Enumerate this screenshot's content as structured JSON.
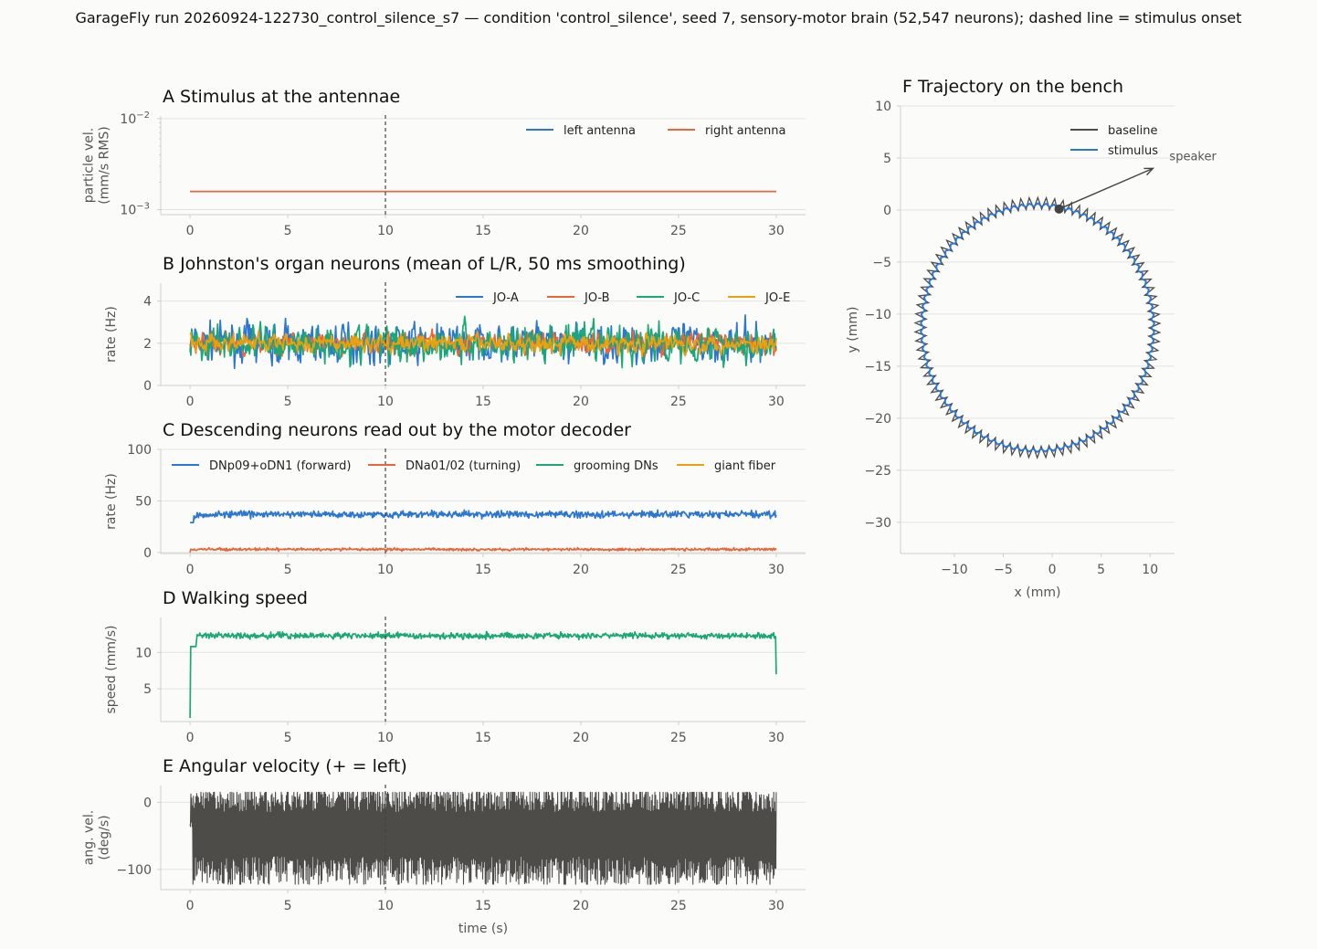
{
  "suptitle": "GarageFly run 20260924-122730_control_silence_s7 — condition 'control_silence', seed 7, sensory-motor brain (52,547 neurons); dashed line = stimulus onset",
  "colors": {
    "blue": "#2a76d2",
    "orange": "#e8663a",
    "green": "#1aa878",
    "gold": "#eba10d",
    "dark": "#4d4c49",
    "grid": "#e3e3e0",
    "axis": "#cfcfcc",
    "text": "#555555"
  },
  "chart_data": [
    {
      "id": "A",
      "type": "line",
      "title": "A  Stimulus at the antennae",
      "xlabel": "",
      "ylabel": [
        "particle vel.",
        "(mm/s RMS)"
      ],
      "yscale": "log",
      "xlim": [
        -1.5,
        31.5
      ],
      "ylim": [
        0.00088,
        0.0107
      ],
      "xticks": [
        0,
        5,
        10,
        15,
        20,
        25,
        30
      ],
      "yticks": [
        {
          "v": 0.001,
          "base": "10",
          "exp": "−3"
        },
        {
          "v": 0.01,
          "base": "10",
          "exp": "−2"
        }
      ],
      "stimulus_onset": 10,
      "legend": "top-right",
      "series": [
        {
          "name": "left antenna",
          "color": "#2a76d2",
          "x": [
            0,
            30
          ],
          "y": [
            0.00158,
            0.00158
          ]
        },
        {
          "name": "right antenna",
          "color": "#e8663a",
          "x": [
            0,
            30
          ],
          "y": [
            0.00158,
            0.00158
          ]
        }
      ]
    },
    {
      "id": "B",
      "type": "line",
      "title": "B  Johnston's organ neurons (mean of L/R, 50 ms smoothing)",
      "xlabel": "",
      "ylabel": [
        "rate (Hz)"
      ],
      "xlim": [
        -1.5,
        31.5
      ],
      "ylim": [
        0,
        4.85
      ],
      "xticks": [
        0,
        5,
        10,
        15,
        20,
        25,
        30
      ],
      "yticks": [
        0,
        2,
        4
      ],
      "stimulus_onset": 10,
      "legend": "top-right",
      "series": [
        {
          "name": "JO-A",
          "color": "#2a76d2",
          "mean": 2.0,
          "noise": 0.9,
          "range": [
            0.2,
            4.6
          ]
        },
        {
          "name": "JO-B",
          "color": "#e8663a",
          "mean": 2.0,
          "noise": 0.55,
          "range": [
            0.6,
            3.6
          ]
        },
        {
          "name": "JO-C",
          "color": "#1aa878",
          "mean": 2.0,
          "noise": 0.95,
          "range": [
            0.3,
            4.75
          ]
        },
        {
          "name": "JO-E",
          "color": "#eba10d",
          "mean": 2.0,
          "noise": 0.45,
          "range": [
            0.8,
            3.1
          ]
        }
      ]
    },
    {
      "id": "C",
      "type": "line",
      "title": "C  Descending neurons read out by the motor decoder",
      "xlabel": "",
      "ylabel": [
        "rate (Hz)"
      ],
      "xlim": [
        -1.5,
        31.5
      ],
      "ylim": [
        -1,
        100
      ],
      "xticks": [
        0,
        5,
        10,
        15,
        20,
        25,
        30
      ],
      "yticks": [
        0,
        50,
        100
      ],
      "stimulus_onset": 10,
      "legend": "top",
      "series": [
        {
          "name": "DNp09+oDN1 (forward)",
          "color": "#2a76d2",
          "mean": 37,
          "noise": 4,
          "range": [
            29,
            46
          ]
        },
        {
          "name": "DNa01/02 (turning)",
          "color": "#e8663a",
          "mean": 3,
          "noise": 1.5,
          "range": [
            0,
            6
          ]
        },
        {
          "name": "grooming DNs",
          "color": "#1aa878",
          "mean": 0,
          "noise": 0,
          "range": [
            0,
            0
          ]
        },
        {
          "name": "giant fiber",
          "color": "#eba10d",
          "mean": 0,
          "noise": 0,
          "range": [
            0,
            0
          ]
        }
      ]
    },
    {
      "id": "D",
      "type": "line",
      "title": "D  Walking speed",
      "xlabel": "",
      "ylabel": [
        "speed (mm/s)"
      ],
      "xlim": [
        -1.5,
        31.5
      ],
      "ylim": [
        0.5,
        14.8
      ],
      "xticks": [
        0,
        5,
        10,
        15,
        20,
        25,
        30
      ],
      "yticks": [
        5,
        10
      ],
      "stimulus_onset": 10,
      "series": [
        {
          "name": "",
          "color": "#1aa878",
          "mean": 12.3,
          "noise": 0.5,
          "range": [
            10.8,
            14
          ],
          "start": 1,
          "end": 7
        }
      ]
    },
    {
      "id": "E",
      "type": "line",
      "title": "E  Angular velocity (+ = left)",
      "xlabel": "time (s)",
      "ylabel": [
        "ang. vel.",
        "(deg/s)"
      ],
      "xlim": [
        -1.5,
        31.5
      ],
      "ylim": [
        -130,
        25
      ],
      "xticks": [
        0,
        5,
        10,
        15,
        20,
        25,
        30
      ],
      "yticks": [
        {
          "v": 0,
          "label": "0"
        },
        {
          "v": -100,
          "label": "−100"
        }
      ],
      "stimulus_onset": 10,
      "series": [
        {
          "name": "",
          "color": "#4d4c49",
          "mean": -45,
          "noise": 35,
          "range": [
            -122,
            15
          ]
        }
      ]
    },
    {
      "id": "F",
      "type": "line",
      "title": "F  Trajectory on the bench",
      "xlabel": "x (mm)",
      "ylabel": [
        "y (mm)"
      ],
      "xlim": [
        -15.5,
        12.5
      ],
      "ylim": [
        -33,
        10
      ],
      "xticks": [
        {
          "v": -10,
          "label": "−10"
        },
        {
          "v": -5,
          "label": "−5"
        },
        {
          "v": 0,
          "label": "0"
        },
        {
          "v": 5,
          "label": "5"
        },
        {
          "v": 10,
          "label": "10"
        }
      ],
      "yticks": [
        {
          "v": 10,
          "label": "10"
        },
        {
          "v": 5,
          "label": "5"
        },
        {
          "v": 0,
          "label": "0"
        },
        {
          "v": -5,
          "label": "−5"
        },
        {
          "v": -10,
          "label": "−10"
        },
        {
          "v": -15,
          "label": "−15"
        },
        {
          "v": -20,
          "label": "−20"
        },
        {
          "v": -25,
          "label": "−25"
        },
        {
          "v": -30,
          "label": "−30"
        }
      ],
      "legend": "top-right",
      "series": [
        {
          "name": "baseline",
          "color": "#4d4c49",
          "center": [
            -1.5,
            -11.3
          ],
          "radius": 11.95,
          "wobble": 0.55
        },
        {
          "name": "stimulus",
          "color": "#2a76d2",
          "center": [
            -1.5,
            -11.3
          ],
          "radius": 11.8,
          "wobble": 0.15
        }
      ],
      "start_point": [
        0.7,
        0.1
      ],
      "annotation": {
        "text": "speaker",
        "from": [
          0.7,
          0.1
        ],
        "to": [
          10.3,
          4
        ]
      }
    }
  ]
}
